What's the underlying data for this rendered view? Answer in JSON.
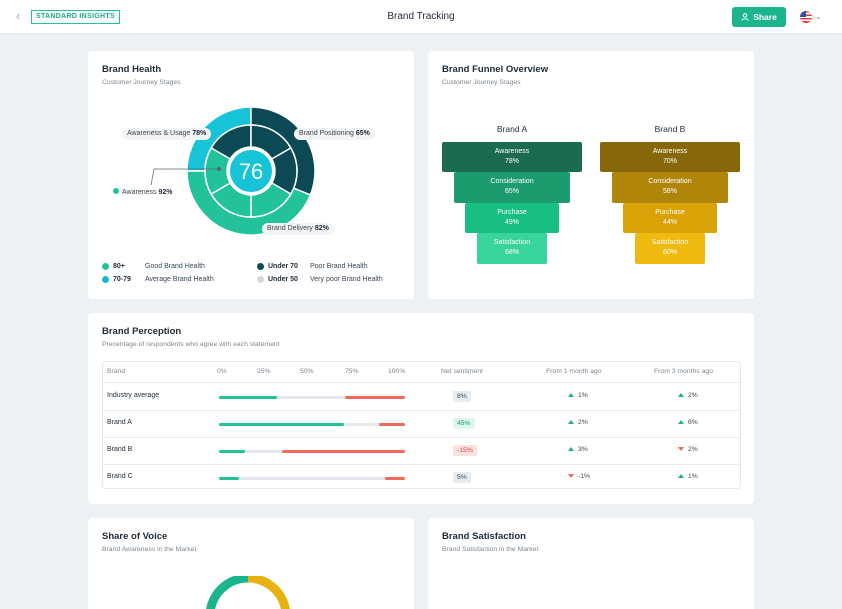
{
  "header": {
    "back_glyph": "‹",
    "logo_text": "STANDARD INSIGHTS",
    "title": "Brand Tracking",
    "share_label": "Share",
    "chevron_glyph": "⌄"
  },
  "brand_health": {
    "title": "Brand Health",
    "subtitle": "Customer Journey Stages",
    "score": "76",
    "labels": {
      "awareness_usage": {
        "name": "Awareness & Usage",
        "value": "78%"
      },
      "brand_positioning": {
        "name": "Brand Positioning",
        "value": "65%"
      },
      "awareness": {
        "name": "Awareness",
        "value": "92%"
      },
      "brand_delivery": {
        "name": "Brand Delivery",
        "value": "82%"
      }
    },
    "legend": [
      {
        "key": "80+",
        "label": "Good Brand Health",
        "color": "#22c39a"
      },
      {
        "key": "70-79",
        "label": "Average Brand Health",
        "color": "#17b9d0"
      },
      {
        "key": "Under 70",
        "label": "Poor Brand Health",
        "color": "#0c4a55"
      },
      {
        "key": "Under 50",
        "label": "Very poor Brand Health",
        "color": "#d4d9de"
      }
    ],
    "colors": {
      "good": "#22c39a",
      "average": "#17c3d6",
      "poor": "#0b4a55",
      "very_poor": "#d4d9de"
    }
  },
  "funnel": {
    "title": "Brand Funnel Overview",
    "subtitle": "Customer Journey Stages",
    "brand_a": {
      "name": "Brand A",
      "stages": [
        {
          "label": "Awareness",
          "value": "78%"
        },
        {
          "label": "Consideration",
          "value": "65%"
        },
        {
          "label": "Purchase",
          "value": "49%"
        },
        {
          "label": "Satisfaction",
          "value": "68%"
        }
      ]
    },
    "brand_b": {
      "name": "Brand B",
      "stages": [
        {
          "label": "Awareness",
          "value": "70%"
        },
        {
          "label": "Consideration",
          "value": "58%"
        },
        {
          "label": "Purchase",
          "value": "44%"
        },
        {
          "label": "Satisfaction",
          "value": "60%"
        }
      ]
    }
  },
  "perception": {
    "title": "Brand Perception",
    "subtitle": "Precentage of respondents who agree with each statement",
    "headers": {
      "brand": "Brand",
      "t0": "0%",
      "t25": "25%",
      "t50": "50%",
      "t75": "75%",
      "t100": "100%",
      "net": "Net sentiment",
      "m1": "From 1 month ago",
      "m3": "From 3 months ago"
    },
    "rows": [
      {
        "name": "Industry average",
        "agree": 31,
        "disagree": 32,
        "net": "8%",
        "m1": "1%",
        "m1_dir": "up",
        "m3": "2%",
        "m3_dir": "up"
      },
      {
        "name": "Brand A",
        "agree": 67,
        "disagree": 14,
        "net": "45%",
        "m1": "2%",
        "m1_dir": "up",
        "m3": "6%",
        "m3_dir": "up"
      },
      {
        "name": "Brand B",
        "agree": 14,
        "disagree": 66,
        "net": "-15%",
        "m1": "3%",
        "m1_dir": "up",
        "m3": "2%",
        "m3_dir": "down"
      },
      {
        "name": "Brand C",
        "agree": 11,
        "disagree": 11,
        "net": "5%",
        "m1": "-1%",
        "m1_dir": "down",
        "m3": "1%",
        "m3_dir": "up"
      }
    ]
  },
  "share_of_voice": {
    "title": "Share of Voice",
    "subtitle": "Brand Awareness in the Market"
  },
  "satisfaction": {
    "title": "Brand Satisfaction",
    "subtitle": "Brand Satisfaction in the Market"
  }
}
